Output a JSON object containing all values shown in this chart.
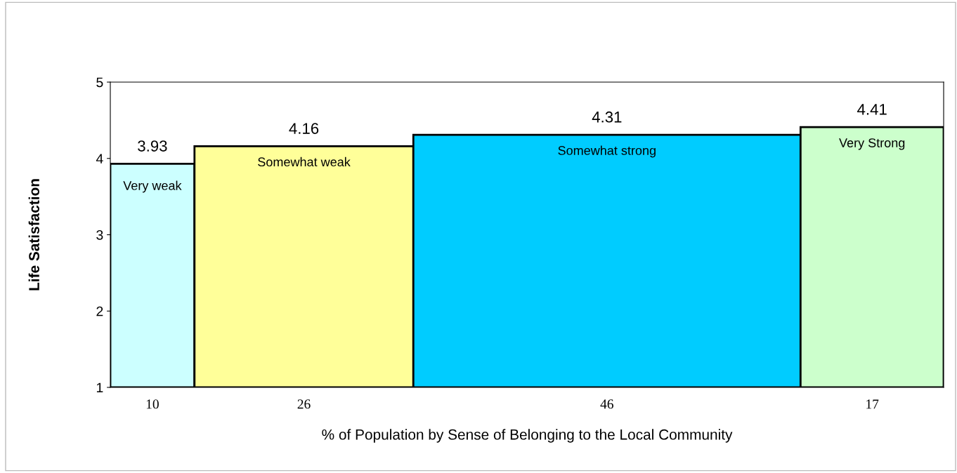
{
  "chart_data": {
    "type": "bar",
    "xlabel": "% of Population by Sense of Belonging to the Local Community",
    "ylabel": "Life Satisfaction",
    "categories": [
      "10",
      "26",
      "46",
      "17"
    ],
    "values": [
      3.93,
      4.16,
      4.31,
      4.41
    ],
    "colors": [
      "#ccffff",
      "#ffff99",
      "#00ccff",
      "#ccffcc"
    ],
    "data_labels": true,
    "ylim": [
      1,
      5
    ],
    "yticks": [
      1,
      2,
      3,
      4,
      5
    ],
    "grid": false,
    "legend": false,
    "annotations": [
      "Very weak",
      "Somewhat weak",
      "Somewhat strong",
      "Very Strong"
    ]
  }
}
